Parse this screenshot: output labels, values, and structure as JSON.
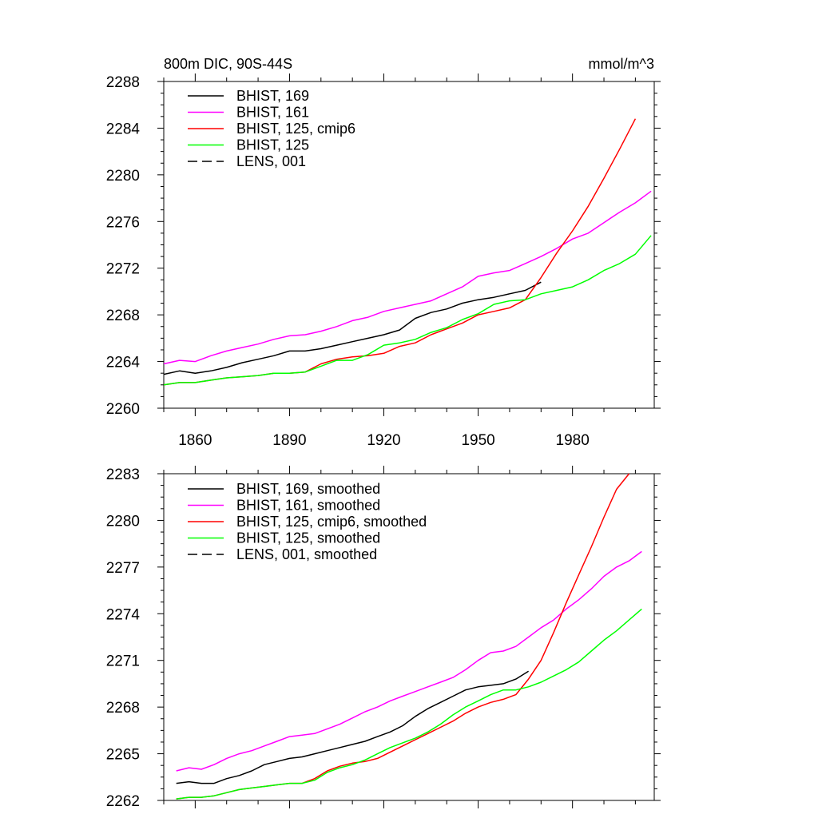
{
  "chart_data": [
    {
      "type": "line",
      "title_left": "800m DIC, 90S-44S",
      "title_right": "mmol/m^3",
      "xlabel": "",
      "ylabel": "",
      "xlim": [
        1850,
        2006
      ],
      "ylim": [
        2260,
        2288
      ],
      "xticks": [
        1860,
        1890,
        1920,
        1950,
        1980
      ],
      "yticks": [
        2260,
        2264,
        2268,
        2272,
        2276,
        2280,
        2284,
        2288
      ],
      "legend_position": "top-left",
      "grid": false,
      "series": [
        {
          "name": "BHIST, 169",
          "color": "#000000",
          "dash": "solid",
          "x": [
            1850,
            1855,
            1860,
            1865,
            1870,
            1875,
            1880,
            1885,
            1890,
            1895,
            1900,
            1905,
            1910,
            1915,
            1920,
            1925,
            1930,
            1935,
            1940,
            1945,
            1950,
            1955,
            1960,
            1965,
            1970
          ],
          "y": [
            2262.9,
            2263.2,
            2263.0,
            2263.2,
            2263.5,
            2263.9,
            2264.2,
            2264.5,
            2264.9,
            2264.9,
            2265.1,
            2265.4,
            2265.7,
            2266.0,
            2266.3,
            2266.7,
            2267.7,
            2268.2,
            2268.5,
            2269.0,
            2269.3,
            2269.5,
            2269.8,
            2270.1,
            2270.8
          ]
        },
        {
          "name": "BHIST, 161",
          "color": "#ff00ff",
          "dash": "solid",
          "x": [
            1850,
            1855,
            1860,
            1865,
            1870,
            1875,
            1880,
            1885,
            1890,
            1895,
            1900,
            1905,
            1910,
            1915,
            1920,
            1925,
            1930,
            1935,
            1940,
            1945,
            1950,
            1955,
            1960,
            1965,
            1970,
            1975,
            1980,
            1985,
            1990,
            1995,
            2000,
            2005
          ],
          "y": [
            2263.8,
            2264.1,
            2264.0,
            2264.5,
            2264.9,
            2265.2,
            2265.5,
            2265.9,
            2266.2,
            2266.3,
            2266.6,
            2267.0,
            2267.5,
            2267.8,
            2268.3,
            2268.6,
            2268.9,
            2269.2,
            2269.8,
            2270.4,
            2271.3,
            2271.6,
            2271.8,
            2272.4,
            2273.0,
            2273.7,
            2274.5,
            2275.0,
            2275.9,
            2276.8,
            2277.6,
            2278.6
          ]
        },
        {
          "name": "BHIST, 125, cmip6",
          "color": "#ff0000",
          "dash": "solid",
          "x": [
            1850,
            1855,
            1860,
            1865,
            1870,
            1875,
            1880,
            1885,
            1890,
            1895,
            1900,
            1905,
            1910,
            1915,
            1920,
            1925,
            1930,
            1935,
            1940,
            1945,
            1950,
            1955,
            1960,
            1965,
            1970,
            1975,
            1980,
            1985,
            1990,
            1995,
            2000
          ],
          "y": [
            2262.0,
            2262.2,
            2262.2,
            2262.4,
            2262.6,
            2262.7,
            2262.8,
            2263.0,
            2263.0,
            2263.1,
            2263.8,
            2264.2,
            2264.4,
            2264.5,
            2264.7,
            2265.3,
            2265.6,
            2266.3,
            2266.8,
            2267.3,
            2268.0,
            2268.3,
            2268.6,
            2269.3,
            2271.2,
            2273.3,
            2275.2,
            2277.3,
            2279.7,
            2282.2,
            2284.8
          ]
        },
        {
          "name": "BHIST, 125",
          "color": "#00ff00",
          "dash": "solid",
          "x": [
            1850,
            1855,
            1860,
            1865,
            1870,
            1875,
            1880,
            1885,
            1890,
            1895,
            1900,
            1905,
            1910,
            1915,
            1920,
            1925,
            1930,
            1935,
            1940,
            1945,
            1950,
            1955,
            1960,
            1965,
            1970,
            1975,
            1980,
            1985,
            1990,
            1995,
            2000,
            2005
          ],
          "y": [
            2262.0,
            2262.2,
            2262.2,
            2262.4,
            2262.6,
            2262.7,
            2262.8,
            2263.0,
            2263.0,
            2263.1,
            2263.6,
            2264.1,
            2264.1,
            2264.6,
            2265.4,
            2265.6,
            2265.9,
            2266.5,
            2266.9,
            2267.6,
            2268.1,
            2268.9,
            2269.2,
            2269.3,
            2269.8,
            2270.1,
            2270.4,
            2271.0,
            2271.8,
            2272.4,
            2273.2,
            2274.8
          ]
        }
      ],
      "legend_dashed": {
        "name": "LENS, 001",
        "color": "#000000",
        "dash": "dashed"
      }
    },
    {
      "type": "line",
      "xlabel": "",
      "ylabel": "",
      "xlim": [
        1850,
        2006
      ],
      "ylim": [
        2262,
        2283
      ],
      "xticks": [
        1860,
        1890,
        1920,
        1950,
        1980
      ],
      "yticks": [
        2262,
        2265,
        2268,
        2271,
        2274,
        2277,
        2280,
        2283
      ],
      "legend_position": "top-left",
      "grid": false,
      "series": [
        {
          "name": "BHIST, 169, smoothed",
          "color": "#000000",
          "dash": "solid",
          "x": [
            1854,
            1858,
            1862,
            1866,
            1870,
            1874,
            1878,
            1882,
            1886,
            1890,
            1894,
            1898,
            1902,
            1906,
            1910,
            1914,
            1918,
            1922,
            1926,
            1930,
            1934,
            1938,
            1942,
            1946,
            1950,
            1954,
            1958,
            1962,
            1966
          ],
          "y": [
            2263.1,
            2263.2,
            2263.1,
            2263.1,
            2263.4,
            2263.6,
            2263.9,
            2264.3,
            2264.5,
            2264.7,
            2264.8,
            2265.0,
            2265.2,
            2265.4,
            2265.6,
            2265.8,
            2266.1,
            2266.4,
            2266.8,
            2267.4,
            2267.9,
            2268.3,
            2268.7,
            2269.1,
            2269.3,
            2269.4,
            2269.5,
            2269.8,
            2270.3
          ]
        },
        {
          "name": "BHIST, 161, smoothed",
          "color": "#ff00ff",
          "dash": "solid",
          "x": [
            1854,
            1858,
            1862,
            1866,
            1870,
            1874,
            1878,
            1882,
            1886,
            1890,
            1894,
            1898,
            1902,
            1906,
            1910,
            1914,
            1918,
            1922,
            1926,
            1930,
            1934,
            1938,
            1942,
            1946,
            1950,
            1954,
            1958,
            1962,
            1966,
            1970,
            1974,
            1978,
            1982,
            1986,
            1990,
            1994,
            1998,
            2002
          ],
          "y": [
            2263.9,
            2264.1,
            2264.0,
            2264.3,
            2264.7,
            2265.0,
            2265.2,
            2265.5,
            2265.8,
            2266.1,
            2266.2,
            2266.3,
            2266.6,
            2266.9,
            2267.3,
            2267.7,
            2268.0,
            2268.4,
            2268.7,
            2269.0,
            2269.3,
            2269.6,
            2269.9,
            2270.4,
            2271.0,
            2271.5,
            2271.6,
            2271.9,
            2272.5,
            2273.1,
            2273.6,
            2274.3,
            2274.9,
            2275.6,
            2276.4,
            2277.0,
            2277.4,
            2278.0
          ]
        },
        {
          "name": "BHIST, 125, cmip6, smoothed",
          "color": "#ff0000",
          "dash": "solid",
          "x": [
            1854,
            1858,
            1862,
            1866,
            1870,
            1874,
            1878,
            1882,
            1886,
            1890,
            1894,
            1898,
            1902,
            1906,
            1910,
            1914,
            1918,
            1922,
            1926,
            1930,
            1934,
            1938,
            1942,
            1946,
            1950,
            1954,
            1958,
            1962,
            1966,
            1970,
            1974,
            1978,
            1982,
            1986,
            1990,
            1994,
            1998
          ],
          "y": [
            2262.1,
            2262.2,
            2262.2,
            2262.3,
            2262.5,
            2262.7,
            2262.8,
            2262.9,
            2263.0,
            2263.1,
            2263.1,
            2263.4,
            2263.9,
            2264.2,
            2264.4,
            2264.5,
            2264.7,
            2265.1,
            2265.5,
            2265.9,
            2266.3,
            2266.7,
            2267.1,
            2267.6,
            2268.0,
            2268.3,
            2268.5,
            2268.8,
            2269.8,
            2271.0,
            2272.8,
            2274.7,
            2276.5,
            2278.3,
            2280.2,
            2282.0,
            2283.0
          ]
        },
        {
          "name": "BHIST, 125, smoothed",
          "color": "#00ff00",
          "dash": "solid",
          "x": [
            1854,
            1858,
            1862,
            1866,
            1870,
            1874,
            1878,
            1882,
            1886,
            1890,
            1894,
            1898,
            1902,
            1906,
            1910,
            1914,
            1918,
            1922,
            1926,
            1930,
            1934,
            1938,
            1942,
            1946,
            1950,
            1954,
            1958,
            1962,
            1966,
            1970,
            1974,
            1978,
            1982,
            1986,
            1990,
            1994,
            1998,
            2002
          ],
          "y": [
            2262.1,
            2262.2,
            2262.2,
            2262.3,
            2262.5,
            2262.7,
            2262.8,
            2262.9,
            2263.0,
            2263.1,
            2263.1,
            2263.3,
            2263.8,
            2264.1,
            2264.3,
            2264.6,
            2265.0,
            2265.4,
            2265.7,
            2266.0,
            2266.4,
            2266.9,
            2267.5,
            2268.0,
            2268.4,
            2268.8,
            2269.1,
            2269.1,
            2269.3,
            2269.6,
            2270.0,
            2270.4,
            2270.9,
            2271.6,
            2272.3,
            2272.9,
            2273.6,
            2274.3
          ]
        }
      ],
      "legend_dashed": {
        "name": "LENS, 001, smoothed",
        "color": "#000000",
        "dash": "dashed"
      }
    }
  ]
}
